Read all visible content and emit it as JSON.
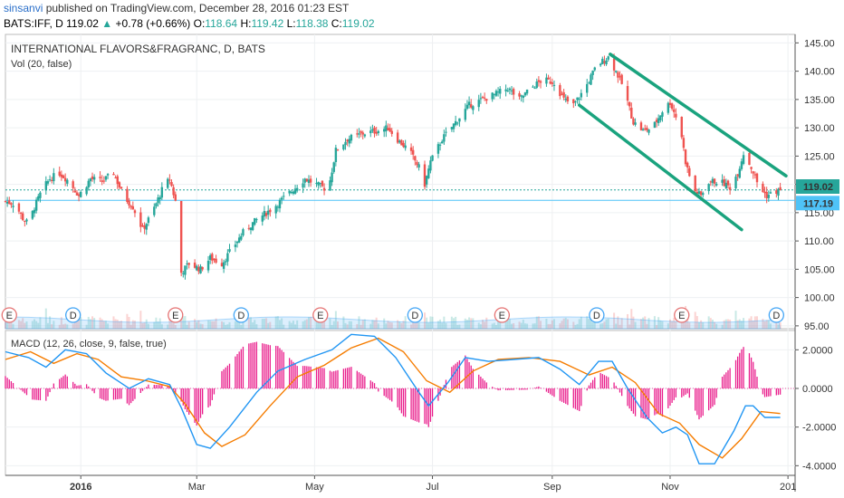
{
  "header": {
    "author": "sinsanvi",
    "published": "published on TradingView.com, December 28, 2016 01:23 EST",
    "symbol": "BATS:IFF, D",
    "last": "119.02",
    "change": "+0.78 (+0.66%)",
    "open_label": "O:",
    "open": "118.64",
    "high_label": "H:",
    "high": "119.42",
    "low_label": "L:",
    "low": "118.38",
    "close_label": "C:",
    "close": "119.02"
  },
  "colors": {
    "up": "#26a69a",
    "down": "#ef5350",
    "channel": "#1aa37e",
    "macd": "#2196f3",
    "signal": "#f57c00",
    "hist": "#e91e8c",
    "support": "#4fc3f7",
    "earnings": "#e57373",
    "dividend": "#42a5f5"
  },
  "chart_data": [
    {
      "type": "candlestick",
      "title": "INTERNATIONAL FLAVORS&FRAGRANC, D, BATS",
      "subtitle": "Vol (20, false)",
      "x_ticks": [
        "2016",
        "Mar",
        "May",
        "Jul",
        "Sep",
        "Nov",
        "201"
      ],
      "y_ticks": [
        "145.00",
        "140.00",
        "135.00",
        "130.00",
        "125.00",
        "120.00",
        "115.00",
        "110.00",
        "105.00",
        "100.00",
        "95.00"
      ],
      "ylim": [
        94.5,
        146.5
      ],
      "price_labels": {
        "last": "119.02",
        "support": "117.19"
      },
      "support_level": 117.19,
      "last_level": 119.02,
      "dates": [
        "2015-11-23",
        "2016-12-28"
      ],
      "close_path": [
        [
          "2015-11-23",
          117.0
        ],
        [
          "2015-11-28",
          116.5
        ],
        [
          "2015-12-02",
          114.0
        ],
        [
          "2015-12-05",
          113.0
        ],
        [
          "2015-12-08",
          116.0
        ],
        [
          "2015-12-12",
          119.0
        ],
        [
          "2015-12-16",
          121.0
        ],
        [
          "2015-12-21",
          122.0
        ],
        [
          "2015-12-26",
          120.5
        ],
        [
          "2015-12-31",
          118.0
        ],
        [
          "2016-01-06",
          121.0
        ],
        [
          "2016-01-12",
          120.5
        ],
        [
          "2016-01-18",
          122.0
        ],
        [
          "2016-01-23",
          118.0
        ],
        [
          "2016-01-28",
          116.0
        ],
        [
          "2016-02-02",
          112.0
        ],
        [
          "2016-02-07",
          115.0
        ],
        [
          "2016-02-12",
          119.0
        ],
        [
          "2016-02-16",
          121.0
        ],
        [
          "2016-02-19",
          117.0
        ],
        [
          "2016-02-21",
          104.0
        ],
        [
          "2016-02-26",
          106.0
        ],
        [
          "2016-03-03",
          105.0
        ],
        [
          "2016-03-08",
          107.0
        ],
        [
          "2016-03-14",
          106.0
        ],
        [
          "2016-03-20",
          109.0
        ],
        [
          "2016-03-26",
          112.0
        ],
        [
          "2016-04-02",
          114.0
        ],
        [
          "2016-04-10",
          116.0
        ],
        [
          "2016-04-18",
          118.5
        ],
        [
          "2016-04-26",
          121.0
        ],
        [
          "2016-05-02",
          120.0
        ],
        [
          "2016-05-08",
          119.0
        ],
        [
          "2016-05-12",
          126.0
        ],
        [
          "2016-05-18",
          128.0
        ],
        [
          "2016-05-26",
          129.0
        ],
        [
          "2016-06-03",
          129.5
        ],
        [
          "2016-06-08",
          130.0
        ],
        [
          "2016-06-14",
          127.5
        ],
        [
          "2016-06-19",
          126.0
        ],
        [
          "2016-06-24",
          123.0
        ],
        [
          "2016-06-27",
          120.0
        ],
        [
          "2016-06-30",
          124.0
        ],
        [
          "2016-07-06",
          128.0
        ],
        [
          "2016-07-13",
          131.0
        ],
        [
          "2016-07-20",
          134.0
        ],
        [
          "2016-07-27",
          135.0
        ],
        [
          "2016-08-03",
          136.0
        ],
        [
          "2016-08-09",
          137.0
        ],
        [
          "2016-08-15",
          135.0
        ],
        [
          "2016-08-21",
          137.0
        ],
        [
          "2016-08-27",
          138.5
        ],
        [
          "2016-09-02",
          138.0
        ],
        [
          "2016-09-07",
          135.0
        ],
        [
          "2016-09-12",
          134.0
        ],
        [
          "2016-09-18",
          137.0
        ],
        [
          "2016-09-24",
          141.0
        ],
        [
          "2016-09-30",
          142.5
        ],
        [
          "2016-10-04",
          140.0
        ],
        [
          "2016-10-08",
          137.0
        ],
        [
          "2016-10-13",
          131.0
        ],
        [
          "2016-10-18",
          129.5
        ],
        [
          "2016-10-23",
          130.0
        ],
        [
          "2016-10-28",
          133.0
        ],
        [
          "2016-11-01",
          134.5
        ],
        [
          "2016-11-04",
          132.0
        ],
        [
          "2016-11-07",
          128.5
        ],
        [
          "2016-11-09",
          124.0
        ],
        [
          "2016-11-13",
          119.0
        ],
        [
          "2016-11-17",
          118.0
        ],
        [
          "2016-11-21",
          120.5
        ],
        [
          "2016-11-27",
          120.5
        ],
        [
          "2016-12-02",
          119.5
        ],
        [
          "2016-12-06",
          122.0
        ],
        [
          "2016-12-09",
          125.5
        ],
        [
          "2016-12-13",
          123.0
        ],
        [
          "2016-12-17",
          119.5
        ],
        [
          "2016-12-21",
          118.0
        ],
        [
          "2016-12-28",
          119.02
        ]
      ],
      "channel": {
        "upper": [
          [
            "2016-10-01",
            143.0
          ],
          [
            "2016-12-31",
            121.5
          ]
        ],
        "lower": [
          [
            "2016-09-15",
            134.0
          ],
          [
            "2016-12-08",
            112.0
          ]
        ]
      },
      "events": [
        {
          "label": "E",
          "date": "2015-11-25"
        },
        {
          "label": "D",
          "date": "2015-12-28"
        },
        {
          "label": "E",
          "date": "2016-02-19"
        },
        {
          "label": "D",
          "date": "2016-03-24"
        },
        {
          "label": "E",
          "date": "2016-05-04"
        },
        {
          "label": "D",
          "date": "2016-06-22"
        },
        {
          "label": "E",
          "date": "2016-08-06"
        },
        {
          "label": "D",
          "date": "2016-09-24"
        },
        {
          "label": "E",
          "date": "2016-11-07"
        },
        {
          "label": "D",
          "date": "2016-12-26"
        }
      ]
    },
    {
      "type": "line",
      "title": "MACD (12, 26, close, 9, false, true)",
      "y_ticks": [
        "2.0000",
        "0.0000",
        "-2.0000",
        "-4.0000"
      ],
      "ylim": [
        -4.5,
        3.0
      ],
      "series": [
        {
          "key": "macd",
          "points": [
            [
              "2015-11-23",
              1.9
            ],
            [
              "2015-12-05",
              1.6
            ],
            [
              "2015-12-14",
              1.1
            ],
            [
              "2015-12-24",
              2.0
            ],
            [
              "2016-01-04",
              1.8
            ],
            [
              "2016-01-14",
              0.8
            ],
            [
              "2016-01-26",
              0.0
            ],
            [
              "2016-02-05",
              0.5
            ],
            [
              "2016-02-16",
              0.2
            ],
            [
              "2016-02-22",
              -1.0
            ],
            [
              "2016-03-01",
              -2.9
            ],
            [
              "2016-03-08",
              -3.1
            ],
            [
              "2016-03-18",
              -2.0
            ],
            [
              "2016-04-01",
              -0.2
            ],
            [
              "2016-04-12",
              0.9
            ],
            [
              "2016-04-26",
              1.5
            ],
            [
              "2016-05-10",
              2.0
            ],
            [
              "2016-05-20",
              2.8
            ],
            [
              "2016-06-01",
              2.7
            ],
            [
              "2016-06-12",
              1.6
            ],
            [
              "2016-06-24",
              -0.2
            ],
            [
              "2016-06-29",
              -0.9
            ],
            [
              "2016-07-09",
              0.3
            ],
            [
              "2016-07-18",
              1.6
            ],
            [
              "2016-07-30",
              1.4
            ],
            [
              "2016-08-12",
              1.5
            ],
            [
              "2016-08-25",
              1.6
            ],
            [
              "2016-09-05",
              1.0
            ],
            [
              "2016-09-15",
              0.2
            ],
            [
              "2016-09-25",
              1.4
            ],
            [
              "2016-10-02",
              1.4
            ],
            [
              "2016-10-10",
              0.0
            ],
            [
              "2016-10-20",
              -1.5
            ],
            [
              "2016-10-28",
              -2.3
            ],
            [
              "2016-11-04",
              -2.0
            ],
            [
              "2016-11-10",
              -2.4
            ],
            [
              "2016-11-16",
              -3.9
            ],
            [
              "2016-11-24",
              -3.9
            ],
            [
              "2016-12-04",
              -2.2
            ],
            [
              "2016-12-10",
              -0.9
            ],
            [
              "2016-12-14",
              -0.9
            ],
            [
              "2016-12-20",
              -1.5
            ],
            [
              "2016-12-28",
              -1.5
            ]
          ]
        },
        {
          "key": "signal",
          "points": [
            [
              "2015-11-23",
              1.5
            ],
            [
              "2015-12-06",
              1.9
            ],
            [
              "2015-12-18",
              1.3
            ],
            [
              "2015-12-30",
              1.8
            ],
            [
              "2016-01-10",
              1.5
            ],
            [
              "2016-01-22",
              0.6
            ],
            [
              "2016-02-04",
              0.4
            ],
            [
              "2016-02-16",
              0.1
            ],
            [
              "2016-02-24",
              -0.8
            ],
            [
              "2016-03-05",
              -2.3
            ],
            [
              "2016-03-14",
              -3.0
            ],
            [
              "2016-03-26",
              -2.4
            ],
            [
              "2016-04-08",
              -0.9
            ],
            [
              "2016-04-22",
              0.6
            ],
            [
              "2016-05-06",
              1.2
            ],
            [
              "2016-05-20",
              2.1
            ],
            [
              "2016-06-03",
              2.6
            ],
            [
              "2016-06-16",
              1.9
            ],
            [
              "2016-06-28",
              0.4
            ],
            [
              "2016-07-10",
              -0.2
            ],
            [
              "2016-07-22",
              0.9
            ],
            [
              "2016-08-04",
              1.5
            ],
            [
              "2016-08-20",
              1.6
            ],
            [
              "2016-09-05",
              1.4
            ],
            [
              "2016-09-20",
              0.7
            ],
            [
              "2016-10-02",
              1.1
            ],
            [
              "2016-10-14",
              0.3
            ],
            [
              "2016-10-26",
              -1.3
            ],
            [
              "2016-11-06",
              -1.8
            ],
            [
              "2016-11-16",
              -2.9
            ],
            [
              "2016-11-28",
              -3.6
            ],
            [
              "2016-12-08",
              -2.6
            ],
            [
              "2016-12-18",
              -1.2
            ],
            [
              "2016-12-28",
              -1.3
            ]
          ]
        }
      ]
    }
  ]
}
